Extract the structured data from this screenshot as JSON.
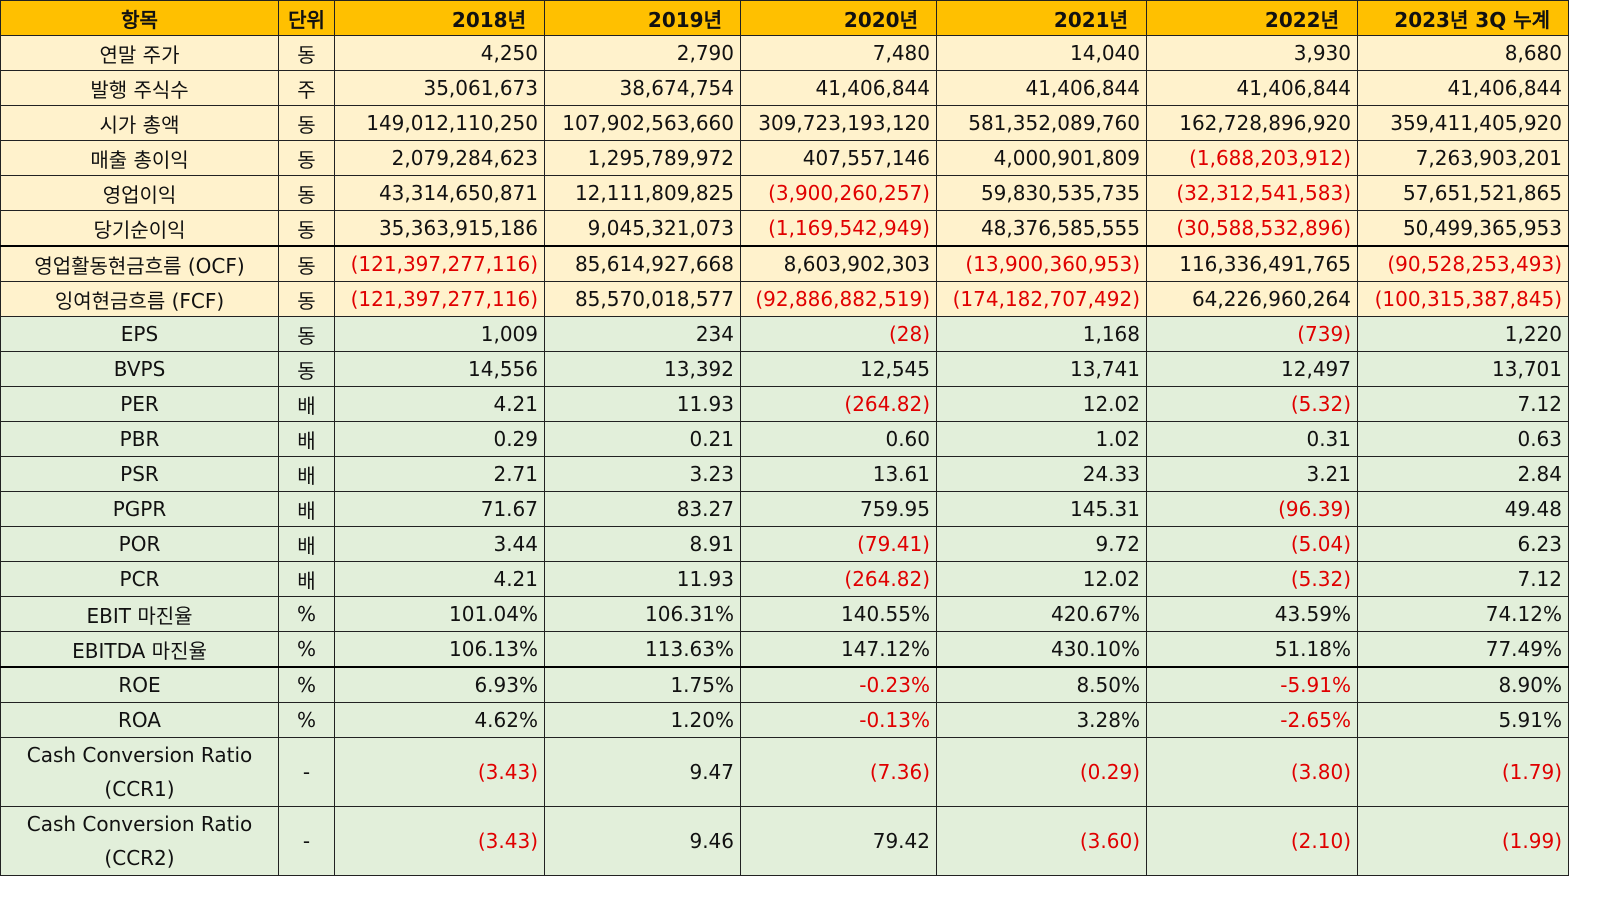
{
  "header": [
    "항목",
    "단위",
    "2018년",
    "2019년",
    "2020년",
    "2021년",
    "2022년",
    "2023년 3Q 누계"
  ],
  "rows": [
    {
      "label": "연말 주가",
      "unit": "동",
      "v": [
        "4,250",
        "2,790",
        "7,480",
        "14,040",
        "3,930",
        "8,680"
      ]
    },
    {
      "label": "발행 주식수",
      "unit": "주",
      "v": [
        "35,061,673",
        "38,674,754",
        "41,406,844",
        "41,406,844",
        "41,406,844",
        "41,406,844"
      ]
    },
    {
      "label": "시가 총액",
      "unit": "동",
      "v": [
        "149,012,110,250",
        "107,902,563,660",
        "309,723,193,120",
        "581,352,089,760",
        "162,728,896,920",
        "359,411,405,920"
      ]
    },
    {
      "label": "매출 총이익",
      "unit": "동",
      "v": [
        "2,079,284,623",
        "1,295,789,972",
        "407,557,146",
        "4,000,901,809",
        "(1,688,203,912)",
        "7,263,903,201"
      ]
    },
    {
      "label": "영업이익",
      "unit": "동",
      "v": [
        "43,314,650,871",
        "12,111,809,825",
        "(3,900,260,257)",
        "59,830,535,735",
        "(32,312,541,583)",
        "57,651,521,865"
      ]
    },
    {
      "label": "당기순이익",
      "unit": "동",
      "v": [
        "35,363,915,186",
        "9,045,321,073",
        "(1,169,542,949)",
        "48,376,585,555",
        "(30,588,532,896)",
        "50,499,365,953"
      ]
    },
    {
      "label": "영업활동현금흐름 (OCF)",
      "unit": "동",
      "v": [
        "(121,397,277,116)",
        "85,614,927,668",
        "8,603,902,303",
        "(13,900,360,953)",
        "116,336,491,765",
        "(90,528,253,493)"
      ]
    },
    {
      "label": "잉여현금흐름 (FCF)",
      "unit": "동",
      "v": [
        "(121,397,277,116)",
        "85,570,018,577",
        "(92,886,882,519)",
        "(174,182,707,492)",
        "64,226,960,264",
        "(100,315,387,845)"
      ]
    },
    {
      "label": "EPS",
      "unit": "동",
      "v": [
        "1,009",
        "234",
        "(28)",
        "1,168",
        "(739)",
        "1,220"
      ]
    },
    {
      "label": "BVPS",
      "unit": "동",
      "v": [
        "14,556",
        "13,392",
        "12,545",
        "13,741",
        "12,497",
        "13,701"
      ]
    },
    {
      "label": "PER",
      "unit": "배",
      "v": [
        "4.21",
        "11.93",
        "(264.82)",
        "12.02",
        "(5.32)",
        "7.12"
      ]
    },
    {
      "label": "PBR",
      "unit": "배",
      "v": [
        "0.29",
        "0.21",
        "0.60",
        "1.02",
        "0.31",
        "0.63"
      ]
    },
    {
      "label": "PSR",
      "unit": "배",
      "v": [
        "2.71",
        "3.23",
        "13.61",
        "24.33",
        "3.21",
        "2.84"
      ]
    },
    {
      "label": "PGPR",
      "unit": "배",
      "v": [
        "71.67",
        "83.27",
        "759.95",
        "145.31",
        "(96.39)",
        "49.48"
      ]
    },
    {
      "label": "POR",
      "unit": "배",
      "v": [
        "3.44",
        "8.91",
        "(79.41)",
        "9.72",
        "(5.04)",
        "6.23"
      ]
    },
    {
      "label": "PCR",
      "unit": "배",
      "v": [
        "4.21",
        "11.93",
        "(264.82)",
        "12.02",
        "(5.32)",
        "7.12"
      ]
    },
    {
      "label": "EBIT 마진율",
      "unit": "%",
      "v": [
        "101.04%",
        "106.31%",
        "140.55%",
        "420.67%",
        "43.59%",
        "74.12%"
      ]
    },
    {
      "label": "EBITDA 마진율",
      "unit": "%",
      "v": [
        "106.13%",
        "113.63%",
        "147.12%",
        "430.10%",
        "51.18%",
        "77.49%"
      ]
    },
    {
      "label": "ROE",
      "unit": "%",
      "v": [
        "6.93%",
        "1.75%",
        "-0.23%",
        "8.50%",
        "-5.91%",
        "8.90%"
      ]
    },
    {
      "label": "ROA",
      "unit": "%",
      "v": [
        "4.62%",
        "1.20%",
        "-0.13%",
        "3.28%",
        "-2.65%",
        "5.91%"
      ]
    },
    {
      "label": "Cash Conversion Ratio (CCR1)",
      "unit": "-",
      "v": [
        "(3.43)",
        "9.47",
        "(7.36)",
        "(0.29)",
        "(3.80)",
        "(1.79)"
      ]
    },
    {
      "label": "Cash Conversion Ratio (CCR2)",
      "unit": "-",
      "v": [
        "(3.43)",
        "9.46",
        "79.42",
        "(3.60)",
        "(2.10)",
        "(1.99)"
      ]
    }
  ]
}
